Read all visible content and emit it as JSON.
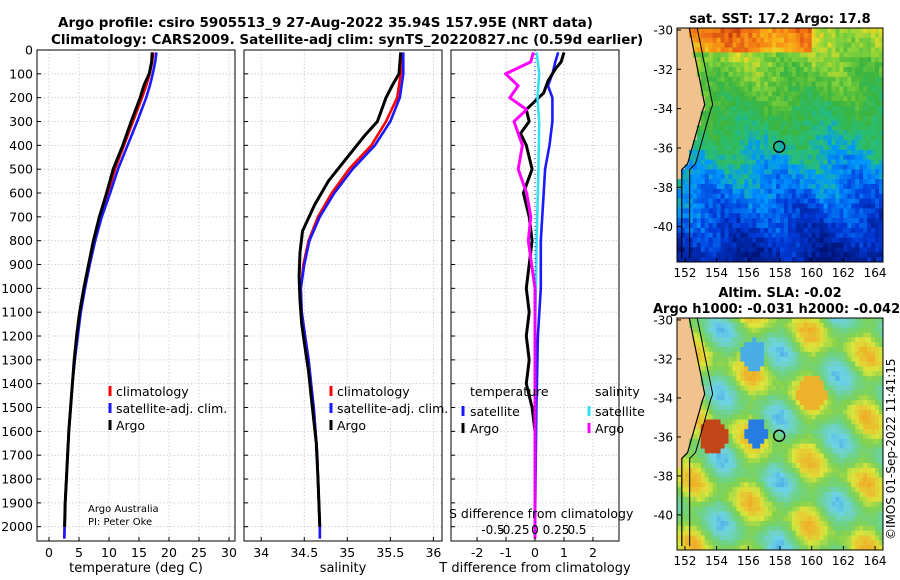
{
  "titles": {
    "line1": "Argo profile: csiro 5905513_9 27-Aug-2022 35.94S 157.95E (NRT data)",
    "line2": "Climatology: CARS2009. Satellite-adj clim: synTS_20220827.nc (0.59d earlier)"
  },
  "stamp": "©IMOS 01-Sep-2022 11:41:15",
  "colors": {
    "argo": "#000000",
    "climatology": "#ff0000",
    "satellite": "#1a1aff",
    "sat_salinity": "#33e0f0",
    "argo_salinity": "#ff00ff"
  },
  "chart_data": [
    {
      "type": "line",
      "name": "temperature-profile",
      "xlabel": "temperature (deg C)",
      "xlim": [
        -2,
        31
      ],
      "ylim": [
        0,
        2060
      ],
      "xticks": [
        0,
        5,
        10,
        15,
        20,
        25,
        30
      ],
      "yticks": [
        0,
        100,
        200,
        300,
        400,
        500,
        600,
        700,
        800,
        900,
        1000,
        1100,
        1200,
        1300,
        1400,
        1500,
        1600,
        1700,
        1800,
        1900,
        2000
      ],
      "legend": [
        "climatology",
        "satellite-adj. clim.",
        "Argo"
      ],
      "note": [
        "Argo Australia",
        "PI: Peter Oke"
      ],
      "series": [
        {
          "name": "climatology",
          "color": "climatology",
          "points": [
            [
              17.4,
              10
            ],
            [
              17.2,
              50
            ],
            [
              16.8,
              100
            ],
            [
              16.2,
              150
            ],
            [
              15.5,
              200
            ],
            [
              14.0,
              300
            ],
            [
              12.5,
              400
            ],
            [
              11.0,
              500
            ],
            [
              9.8,
              600
            ],
            [
              8.5,
              700
            ],
            [
              7.5,
              800
            ],
            [
              6.6,
              900
            ],
            [
              5.8,
              1000
            ],
            [
              5.2,
              1100
            ],
            [
              4.7,
              1200
            ],
            [
              4.3,
              1300
            ],
            [
              3.9,
              1400
            ],
            [
              3.6,
              1500
            ],
            [
              3.3,
              1600
            ],
            [
              3.1,
              1700
            ],
            [
              2.9,
              1800
            ],
            [
              2.7,
              1900
            ],
            [
              2.6,
              2000
            ],
            [
              2.55,
              2050
            ]
          ]
        },
        {
          "name": "satellite-adj. clim.",
          "color": "satellite",
          "points": [
            [
              17.9,
              10
            ],
            [
              17.7,
              50
            ],
            [
              17.3,
              100
            ],
            [
              16.8,
              150
            ],
            [
              16.2,
              200
            ],
            [
              14.7,
              300
            ],
            [
              13.1,
              400
            ],
            [
              11.5,
              500
            ],
            [
              10.2,
              600
            ],
            [
              8.8,
              700
            ],
            [
              7.7,
              800
            ],
            [
              6.8,
              900
            ],
            [
              6.0,
              1000
            ],
            [
              5.3,
              1100
            ],
            [
              4.8,
              1200
            ],
            [
              4.3,
              1300
            ],
            [
              3.9,
              1400
            ],
            [
              3.6,
              1500
            ],
            [
              3.3,
              1600
            ],
            [
              3.1,
              1700
            ],
            [
              2.9,
              1800
            ],
            [
              2.7,
              1900
            ],
            [
              2.6,
              2000
            ],
            [
              2.55,
              2050
            ]
          ]
        },
        {
          "name": "Argo",
          "color": "argo",
          "points": [
            [
              17.2,
              10
            ],
            [
              17.1,
              50
            ],
            [
              16.7,
              100
            ],
            [
              15.8,
              150
            ],
            [
              15.2,
              200
            ],
            [
              13.7,
              300
            ],
            [
              12.3,
              400
            ],
            [
              10.7,
              500
            ],
            [
              9.6,
              600
            ],
            [
              8.4,
              700
            ],
            [
              7.4,
              800
            ],
            [
              6.6,
              900
            ],
            [
              5.8,
              1000
            ],
            [
              5.1,
              1100
            ],
            [
              4.6,
              1200
            ],
            [
              4.2,
              1300
            ],
            [
              3.9,
              1400
            ],
            [
              3.6,
              1500
            ],
            [
              3.3,
              1600
            ],
            [
              3.1,
              1700
            ],
            [
              2.9,
              1800
            ],
            [
              2.7,
              1900
            ],
            [
              2.6,
              2000
            ]
          ]
        }
      ]
    },
    {
      "type": "line",
      "name": "salinity-profile",
      "xlabel": "salinity",
      "xlim": [
        33.8,
        36.1
      ],
      "ylim": [
        0,
        2060
      ],
      "xticks": [
        34,
        34.5,
        35,
        35.5,
        36
      ],
      "legend": [
        "climatology",
        "satellite-adj. clim.",
        "Argo"
      ],
      "series": [
        {
          "name": "climatology",
          "color": "climatology",
          "points": [
            [
              35.63,
              10
            ],
            [
              35.62,
              100
            ],
            [
              35.58,
              200
            ],
            [
              35.45,
              300
            ],
            [
              35.28,
              400
            ],
            [
              35.02,
              500
            ],
            [
              34.82,
              600
            ],
            [
              34.66,
              700
            ],
            [
              34.55,
              800
            ],
            [
              34.49,
              900
            ],
            [
              34.46,
              1000
            ],
            [
              34.47,
              1100
            ],
            [
              34.51,
              1200
            ],
            [
              34.55,
              1300
            ],
            [
              34.58,
              1400
            ],
            [
              34.61,
              1500
            ],
            [
              34.63,
              1600
            ],
            [
              34.65,
              1700
            ],
            [
              34.66,
              1800
            ],
            [
              34.67,
              1900
            ],
            [
              34.68,
              2000
            ],
            [
              34.68,
              2050
            ]
          ]
        },
        {
          "name": "satellite-adj. clim.",
          "color": "satellite",
          "points": [
            [
              35.65,
              10
            ],
            [
              35.65,
              100
            ],
            [
              35.61,
              200
            ],
            [
              35.5,
              300
            ],
            [
              35.32,
              400
            ],
            [
              35.06,
              500
            ],
            [
              34.85,
              600
            ],
            [
              34.68,
              700
            ],
            [
              34.56,
              800
            ],
            [
              34.5,
              900
            ],
            [
              34.46,
              1000
            ],
            [
              34.47,
              1100
            ],
            [
              34.51,
              1200
            ],
            [
              34.55,
              1300
            ],
            [
              34.58,
              1400
            ],
            [
              34.61,
              1500
            ],
            [
              34.63,
              1600
            ],
            [
              34.65,
              1700
            ],
            [
              34.66,
              1800
            ],
            [
              34.67,
              1900
            ],
            [
              34.68,
              2000
            ],
            [
              34.68,
              2050
            ]
          ]
        },
        {
          "name": "Argo",
          "color": "argo",
          "points": [
            [
              35.62,
              10
            ],
            [
              35.6,
              100
            ],
            [
              35.52,
              150
            ],
            [
              35.45,
              200
            ],
            [
              35.35,
              300
            ],
            [
              35.2,
              360
            ],
            [
              35.0,
              450
            ],
            [
              34.78,
              550
            ],
            [
              34.62,
              650
            ],
            [
              34.48,
              760
            ],
            [
              34.45,
              850
            ],
            [
              34.44,
              950
            ],
            [
              34.45,
              1050
            ],
            [
              34.47,
              1150
            ],
            [
              34.51,
              1250
            ],
            [
              34.55,
              1350
            ],
            [
              34.58,
              1450
            ],
            [
              34.61,
              1550
            ],
            [
              34.64,
              1650
            ],
            [
              34.66,
              1800
            ],
            [
              34.67,
              1900
            ],
            [
              34.68,
              2000
            ]
          ]
        }
      ]
    },
    {
      "type": "line",
      "name": "difference-profile",
      "xlabel": "T difference from climatology",
      "xlabel2": "S difference from climatology",
      "xlim": [
        -2.9,
        2.9
      ],
      "ylim": [
        0,
        2060
      ],
      "xticks": [
        -2,
        -1,
        0,
        1,
        2
      ],
      "xtick_labels": [
        "-2",
        "-1",
        "0",
        "1",
        "2"
      ],
      "s_ticks": [
        -0.5,
        -0.25,
        0,
        0.25,
        0.5
      ],
      "s_tick_labels": [
        "-0.5",
        "-0.25",
        "0",
        "0.25",
        "0.5"
      ],
      "legend_titles": [
        "temperature",
        "salinity"
      ],
      "legend_temperature": [
        "satellite",
        "Argo"
      ],
      "legend_salinity": [
        "satellite",
        "Argo"
      ],
      "series": [
        {
          "name": "T satellite",
          "color": "satellite",
          "points": [
            [
              0.8,
              10
            ],
            [
              0.7,
              50
            ],
            [
              0.6,
              100
            ],
            [
              0.45,
              150
            ],
            [
              0.6,
              200
            ],
            [
              0.6,
              300
            ],
            [
              0.5,
              400
            ],
            [
              0.35,
              500
            ],
            [
              0.3,
              600
            ],
            [
              0.2,
              800
            ],
            [
              0.2,
              1000
            ],
            [
              0.1,
              1200
            ],
            [
              0.05,
              1500
            ],
            [
              0,
              2000
            ]
          ]
        },
        {
          "name": "T Argo",
          "color": "argo",
          "points": [
            [
              1.0,
              10
            ],
            [
              0.9,
              50
            ],
            [
              0.7,
              80
            ],
            [
              0.45,
              130
            ],
            [
              0.3,
              180
            ],
            [
              -0.3,
              250
            ],
            [
              -0.2,
              300
            ],
            [
              -0.5,
              350
            ],
            [
              -0.3,
              400
            ],
            [
              -0.1,
              500
            ],
            [
              -0.4,
              600
            ],
            [
              -0.2,
              700
            ],
            [
              -0.1,
              800
            ],
            [
              -0.2,
              900
            ],
            [
              -0.3,
              1000
            ],
            [
              -0.2,
              1100
            ],
            [
              -0.3,
              1200
            ],
            [
              -0.2,
              1300
            ],
            [
              -0.3,
              1400
            ],
            [
              -0.1,
              1500
            ],
            [
              0,
              1600
            ],
            [
              0,
              2000
            ]
          ]
        },
        {
          "name": "S satellite",
          "color": "sat_salinity",
          "points": [
            [
              0.02,
              10
            ],
            [
              0.05,
              100
            ],
            [
              0.03,
              200
            ],
            [
              0.05,
              300
            ],
            [
              0.04,
              500
            ],
            [
              0.02,
              800
            ],
            [
              0,
              1200
            ],
            [
              0,
              2050
            ]
          ]
        },
        {
          "name": "S Argo",
          "color": "argo_salinity",
          "points": [
            [
              -0.02,
              10
            ],
            [
              -0.05,
              50
            ],
            [
              -0.35,
              100
            ],
            [
              -0.2,
              150
            ],
            [
              -0.3,
              200
            ],
            [
              -0.1,
              250
            ],
            [
              -0.25,
              300
            ],
            [
              -0.15,
              400
            ],
            [
              -0.2,
              500
            ],
            [
              -0.1,
              600
            ],
            [
              -0.05,
              700
            ],
            [
              -0.08,
              800
            ],
            [
              0,
              1000
            ],
            [
              0,
              1500
            ],
            [
              0,
              2050
            ]
          ]
        }
      ]
    },
    {
      "type": "heatmap",
      "name": "sst-map",
      "title": "sat. SST: 17.2 Argo: 17.8",
      "xlim": [
        151.5,
        164.5
      ],
      "ylim": [
        -41.8,
        -29.9
      ],
      "xticks": [
        152,
        154,
        156,
        158,
        160,
        162,
        164
      ],
      "yticks": [
        -30,
        -32,
        -34,
        -36,
        -38,
        -40
      ],
      "marker": [
        157.95,
        -35.94
      ]
    },
    {
      "type": "heatmap",
      "name": "sla-map",
      "title": "Altim. SLA: -0.02",
      "subtitle": "Argo h1000: -0.031 h2000: -0.042",
      "xlim": [
        151.5,
        164.5
      ],
      "ylim": [
        -41.8,
        -29.9
      ],
      "xticks": [
        152,
        154,
        156,
        158,
        160,
        162,
        164
      ],
      "yticks": [
        -30,
        -32,
        -34,
        -36,
        -38,
        -40
      ],
      "marker": [
        157.95,
        -35.94
      ]
    }
  ]
}
